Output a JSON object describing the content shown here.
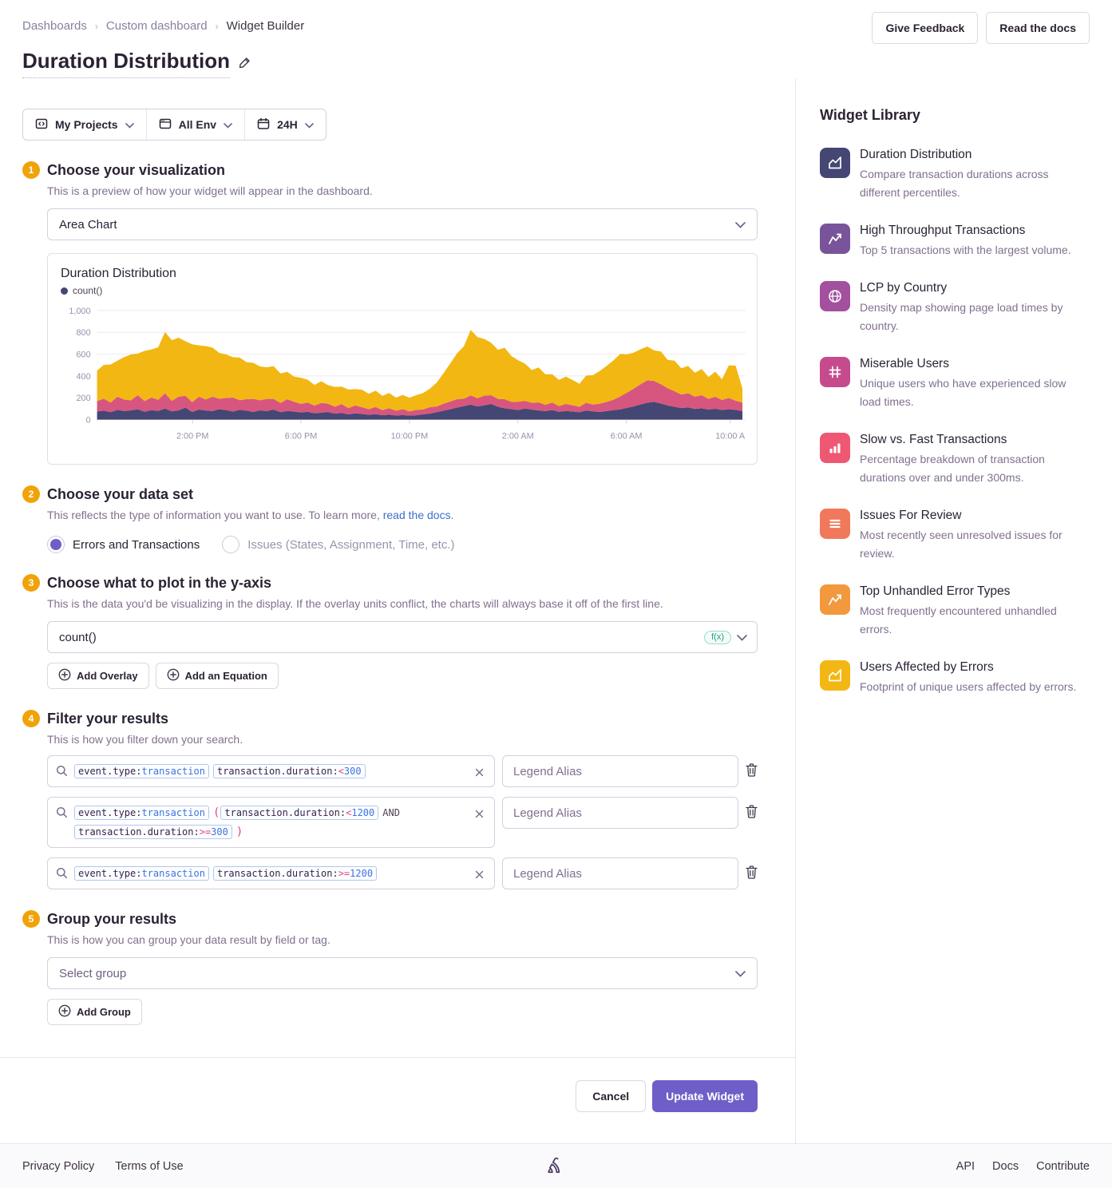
{
  "breadcrumb": {
    "items": [
      "Dashboards",
      "Custom dashboard",
      "Widget Builder"
    ]
  },
  "header": {
    "title": "Duration Distribution",
    "buttons": [
      "Give Feedback",
      "Read the docs"
    ]
  },
  "filters_bar": {
    "project": "My Projects",
    "env": "All Env",
    "period": "24H"
  },
  "steps": {
    "step1": {
      "num": "1",
      "title": "Choose your visualization",
      "subtitle": "This is a preview of how your widget will appear in the dashboard.",
      "select_value": "Area Chart"
    },
    "step2": {
      "num": "2",
      "title": "Choose your data set",
      "subtitle_pre": "This reflects the type of information you want to use. To learn more, ",
      "subtitle_link": "read the docs",
      "subtitle_post": ".",
      "radio_selected": "Errors and Transactions",
      "radio_unselected": "Issues (States, Assignment, Time, etc.)"
    },
    "step3": {
      "num": "3",
      "title": "Choose what to plot in the y-axis",
      "subtitle": "This is the data you'd be visualizing in the display. If the overlay units conflict, the charts will always base it off of the first line.",
      "field_value": "count()",
      "field_badge": "f(x)",
      "btn_overlay": "Add Overlay",
      "btn_equation": "Add an Equation"
    },
    "step4": {
      "num": "4",
      "title": "Filter your results",
      "subtitle": "This is how you filter down your search.",
      "legend_placeholder": "Legend Alias",
      "rows": [
        {
          "items": [
            {
              "kind": "token",
              "segs": [
                [
                  "k",
                  "event.type:"
                ],
                [
                  "v",
                  "transaction"
                ]
              ]
            },
            {
              "kind": "token",
              "segs": [
                [
                  "k",
                  "transaction.duration:"
                ],
                [
                  "o",
                  "<"
                ],
                [
                  "v",
                  "300"
                ]
              ]
            }
          ]
        },
        {
          "items": [
            {
              "kind": "token",
              "segs": [
                [
                  "k",
                  "event.type:"
                ],
                [
                  "v",
                  "transaction"
                ]
              ]
            },
            {
              "kind": "paren",
              "text": "("
            },
            {
              "kind": "token",
              "segs": [
                [
                  "k",
                  "transaction.duration:"
                ],
                [
                  "o",
                  "<"
                ],
                [
                  "v",
                  "1200"
                ]
              ]
            },
            {
              "kind": "and",
              "text": "AND"
            },
            {
              "kind": "break"
            },
            {
              "kind": "token",
              "segs": [
                [
                  "k",
                  "transaction.duration:"
                ],
                [
                  "o",
                  ">="
                ],
                [
                  "v",
                  "300"
                ]
              ]
            },
            {
              "kind": "paren",
              "text": ")"
            }
          ]
        },
        {
          "items": [
            {
              "kind": "token",
              "segs": [
                [
                  "k",
                  "event.type:"
                ],
                [
                  "v",
                  "transaction"
                ]
              ]
            },
            {
              "kind": "token",
              "segs": [
                [
                  "k",
                  "transaction.duration:"
                ],
                [
                  "o",
                  ">="
                ],
                [
                  "v",
                  "1200"
                ]
              ]
            }
          ]
        }
      ]
    },
    "step5": {
      "num": "5",
      "title": "Group your results",
      "subtitle": "This is how you can group your data result by field or tag.",
      "select_placeholder": "Select group",
      "btn_add": "Add Group"
    }
  },
  "actions": {
    "cancel": "Cancel",
    "submit": "Update Widget"
  },
  "widget_library": {
    "title": "Widget Library",
    "items": [
      {
        "name": "Duration Distribution",
        "desc": "Compare transaction durations across different percentiles.",
        "color": "#444674",
        "icon": "area-chart"
      },
      {
        "name": "High Throughput Transactions",
        "desc": "Top 5 transactions with the largest volume.",
        "color": "#7a549b",
        "icon": "line-chart"
      },
      {
        "name": "LCP by Country",
        "desc": "Density map showing page load times by country.",
        "color": "#a3509e",
        "icon": "globe"
      },
      {
        "name": "Miserable Users",
        "desc": "Unique users who have experienced slow load times.",
        "color": "#c64b8c",
        "icon": "hash"
      },
      {
        "name": "Slow vs. Fast Transactions",
        "desc": "Percentage breakdown of transaction durations over and under 300ms.",
        "color": "#ee5873",
        "icon": "bar-chart"
      },
      {
        "name": "Issues For Review",
        "desc": "Most recently seen unresolved issues for review.",
        "color": "#f0795b",
        "icon": "list"
      },
      {
        "name": "Top Unhandled Error Types",
        "desc": "Most frequently encountered unhandled errors.",
        "color": "#f2993e",
        "icon": "line-chart"
      },
      {
        "name": "Users Affected by Errors",
        "desc": "Footprint of unique users affected by errors.",
        "color": "#f2b712",
        "icon": "area-chart"
      }
    ]
  },
  "footer": {
    "left": [
      "Privacy Policy",
      "Terms of Use"
    ],
    "right": [
      "API",
      "Docs",
      "Contribute"
    ]
  },
  "chart_data": {
    "type": "area",
    "stacked": true,
    "title": "Duration Distribution",
    "legend_entries": [
      "count()"
    ],
    "legend_position": "top-left",
    "grid": true,
    "ylim": [
      0,
      1000
    ],
    "yticks": [
      {
        "v": 0,
        "label": "0"
      },
      {
        "v": 200,
        "label": "200"
      },
      {
        "v": 400,
        "label": "400"
      },
      {
        "v": 600,
        "label": "600"
      },
      {
        "v": 800,
        "label": "800"
      },
      {
        "v": 1000,
        "label": "1,000"
      }
    ],
    "xticks": [
      {
        "label": "2:00 PM",
        "f": 0.148
      },
      {
        "label": "6:00 PM",
        "f": 0.316
      },
      {
        "label": "10:00 PM",
        "f": 0.484
      },
      {
        "label": "2:00 AM",
        "f": 0.652
      },
      {
        "label": "6:00 AM",
        "f": 0.82
      },
      {
        "label": "10:00 A",
        "f": 0.981
      }
    ],
    "series": [
      {
        "name": "stack-bottom",
        "color": "#444674",
        "values": [
          75,
          82,
          68,
          90,
          78,
          85,
          95,
          72,
          88,
          80,
          102,
          76,
          85,
          110,
          70,
          92,
          84,
          78,
          96,
          88,
          74,
          90,
          82,
          70,
          85,
          78,
          92,
          68,
          80,
          74,
          66,
          72,
          58,
          64,
          70,
          55,
          62,
          48,
          58,
          52,
          44,
          50,
          40,
          46,
          38,
          42,
          36,
          40,
          48,
          56,
          68,
          82,
          96,
          110,
          124,
          138,
          120,
          132,
          144,
          118,
          104,
          96,
          88,
          102,
          92,
          84,
          78,
          88,
          72,
          80,
          74,
          68,
          84,
          76,
          70,
          78,
          86,
          94,
          108,
          122,
          140,
          155,
          162,
          148,
          130,
          118,
          106,
          112,
          98,
          104,
          92,
          100,
          88,
          96,
          90,
          78
        ]
      },
      {
        "name": "stack-middle",
        "color": "#d6567f",
        "values": [
          95,
          110,
          88,
          120,
          105,
          92,
          130,
          98,
          115,
          102,
          140,
          96,
          125,
          108,
          90,
          118,
          100,
          132,
          95,
          110,
          128,
          88,
          105,
          120,
          92,
          112,
          98,
          85,
          108,
          90,
          78,
          84,
          70,
          88,
          76,
          64,
          80,
          58,
          72,
          62,
          52,
          66,
          48,
          58,
          44,
          54,
          40,
          50,
          46,
          58,
          52,
          64,
          70,
          78,
          68,
          84,
          76,
          88,
          80,
          72,
          84,
          66,
          76,
          70,
          62,
          74,
          58,
          68,
          52,
          64,
          58,
          50,
          70,
          62,
          76,
          84,
          96,
          118,
          140,
          162,
          184,
          205,
          192,
          176,
          158,
          142,
          124,
          130,
          112,
          120,
          98,
          110,
          92,
          102,
          84,
          78
        ]
      },
      {
        "name": "stack-top",
        "color": "#f2b712",
        "values": [
          280,
          310,
          350,
          330,
          390,
          420,
          380,
          460,
          440,
          480,
          560,
          556,
          540,
          500,
          530,
          470,
          490,
          450,
          420,
          400,
          370,
          390,
          340,
          330,
          310,
          290,
          300,
          270,
          250,
          230,
          240,
          210,
          190,
          200,
          170,
          180,
          160,
          170,
          150,
          160,
          140,
          150,
          130,
          140,
          120,
          130,
          125,
          135,
          150,
          170,
          220,
          280,
          350,
          420,
          480,
          600,
          560,
          520,
          480,
          450,
          470,
          420,
          380,
          340,
          300,
          320,
          280,
          260,
          240,
          250,
          230,
          210,
          250,
          270,
          300,
          330,
          360,
          390,
          350,
          330,
          320,
          310,
          280,
          300,
          260,
          280,
          240,
          250,
          220,
          240,
          200,
          230,
          190,
          300,
          320,
          130
        ]
      }
    ]
  }
}
